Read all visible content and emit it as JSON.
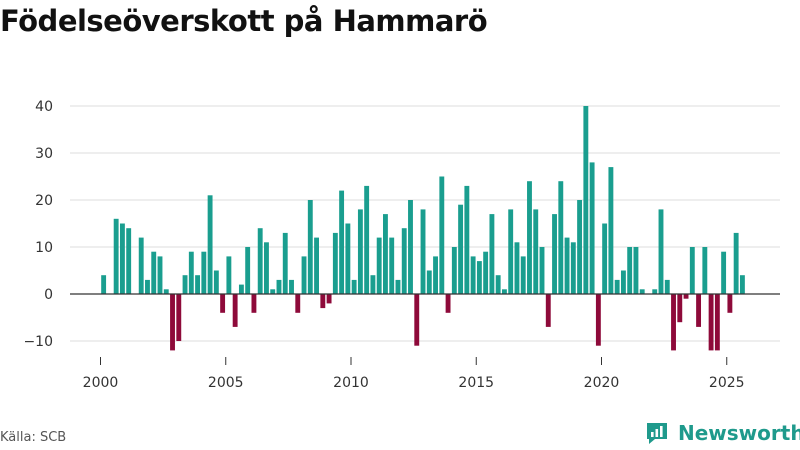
{
  "title": "Födelseöverskott på Hammarö",
  "source": "Källa: SCB",
  "brand": "Newsworthy",
  "colors": {
    "positive": "#1a9e8f",
    "negative": "#8e0a3a",
    "grid": "#dddddd",
    "brand": "#1f9a8c"
  },
  "chart_data": {
    "type": "bar",
    "title": "Födelseöverskott på Hammarö",
    "xlabel": "",
    "ylabel": "",
    "ylim": [
      -14,
      42
    ],
    "yticks": [
      40,
      30,
      20,
      10,
      0,
      -10
    ],
    "ytick_labels": [
      "40",
      "30",
      "20",
      "10",
      "0",
      "−10"
    ],
    "xticks": [
      2000,
      2005,
      2010,
      2015,
      2020,
      2025
    ],
    "xtick_labels": [
      "2000",
      "2005",
      "2010",
      "2015",
      "2020",
      "2025"
    ],
    "frequency": "quarterly",
    "start": 2000.125,
    "step": 0.25,
    "values": [
      4,
      0,
      16,
      15,
      14,
      0,
      12,
      3,
      9,
      8,
      1,
      -12,
      -10,
      4,
      9,
      4,
      9,
      21,
      5,
      -4,
      8,
      -7,
      2,
      10,
      -4,
      14,
      11,
      1,
      3,
      13,
      3,
      -4,
      8,
      20,
      12,
      -3,
      -2,
      13,
      22,
      15,
      3,
      18,
      23,
      4,
      12,
      17,
      12,
      3,
      14,
      20,
      -11,
      18,
      5,
      8,
      25,
      -4,
      10,
      19,
      23,
      8,
      7,
      9,
      17,
      4,
      1,
      18,
      11,
      8,
      24,
      18,
      10,
      -7,
      17,
      24,
      12,
      11,
      20,
      40,
      28,
      -11,
      15,
      27,
      3,
      5,
      10,
      10,
      1,
      0,
      1,
      18,
      3,
      -12,
      -6,
      -1,
      10,
      -7,
      10,
      -12,
      -12,
      9,
      -4,
      13,
      4
    ]
  }
}
